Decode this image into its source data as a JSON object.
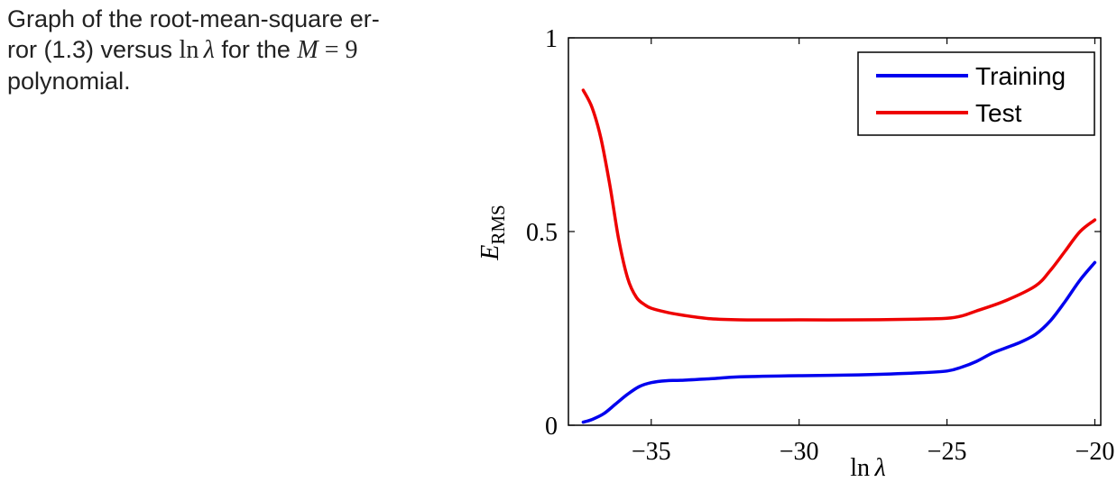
{
  "caption": {
    "prefix": "Graph of the root-mean-square er-",
    "line2_a": "ror (1.3) versus ",
    "math_ln": "ln",
    "math_lambda": "λ",
    "line2_b": " for the ",
    "math_M": "M",
    "math_eq": " = 9",
    "line3": "polynomial."
  },
  "chart_data": {
    "type": "line",
    "xlabel": "ln λ",
    "ylabel": "E_RMS",
    "xlim": [
      -37.8,
      -19.8
    ],
    "ylim": [
      0,
      1
    ],
    "xticks": [
      -35,
      -30,
      -25,
      -20
    ],
    "xtick_labels": [
      "−35",
      "−30",
      "−25",
      "−20"
    ],
    "yticks": [
      0,
      0.5,
      1
    ],
    "ytick_labels": [
      "0",
      "0.5",
      "1"
    ],
    "legend_position": "top-right",
    "series": [
      {
        "name": "Training",
        "color": "#0000ee",
        "x": [
          -37.3,
          -37.0,
          -36.6,
          -36.2,
          -35.8,
          -35.4,
          -35.0,
          -34.5,
          -34.0,
          -33.0,
          -32.0,
          -30.0,
          -28.0,
          -26.0,
          -25.0,
          -24.5,
          -24.0,
          -23.5,
          -23.0,
          -22.5,
          -22.0,
          -21.5,
          -21.0,
          -20.5,
          -20.0
        ],
        "y": [
          0.008,
          0.015,
          0.03,
          0.055,
          0.08,
          0.1,
          0.11,
          0.115,
          0.116,
          0.12,
          0.125,
          0.128,
          0.13,
          0.135,
          0.14,
          0.15,
          0.165,
          0.185,
          0.2,
          0.215,
          0.235,
          0.27,
          0.32,
          0.375,
          0.42
        ]
      },
      {
        "name": "Test",
        "color": "#ee0000",
        "x": [
          -37.3,
          -37.0,
          -36.7,
          -36.4,
          -36.1,
          -35.8,
          -35.5,
          -35.2,
          -35.0,
          -34.5,
          -34.0,
          -33.0,
          -32.0,
          -30.0,
          -28.0,
          -26.0,
          -25.0,
          -24.5,
          -24.0,
          -23.0,
          -22.0,
          -21.5,
          -21.0,
          -20.5,
          -20.0
        ],
        "y": [
          0.865,
          0.82,
          0.74,
          0.62,
          0.48,
          0.38,
          0.33,
          0.31,
          0.302,
          0.292,
          0.285,
          0.275,
          0.272,
          0.272,
          0.272,
          0.274,
          0.276,
          0.282,
          0.295,
          0.322,
          0.36,
          0.4,
          0.45,
          0.5,
          0.53
        ]
      }
    ]
  }
}
